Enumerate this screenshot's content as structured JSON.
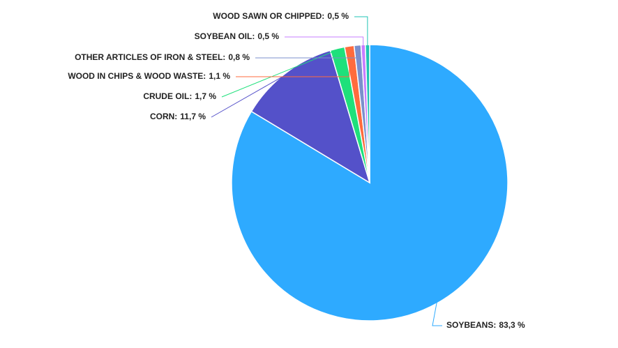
{
  "chart_data": {
    "type": "pie",
    "categories": [
      "SOYBEANS:",
      "CORN:",
      "CRUDE OIL:",
      "WOOD IN CHIPS & WOOD WASTE:",
      "OTHER ARTICLES OF IRON & STEEL:",
      "SOYBEAN OIL:",
      "WOOD SAWN OR CHIPPED:"
    ],
    "values": [
      83.3,
      11.7,
      1.7,
      1.1,
      0.8,
      0.5,
      0.5
    ],
    "value_labels": [
      "83,3 %",
      "11,7 %",
      "1,7 %",
      "1,1 %",
      "0,8 %",
      "0,5 %",
      "0,5 %"
    ],
    "colors": [
      "#2eaaff",
      "#5451c9",
      "#1ee07b",
      "#ff6b3d",
      "#7b8fcc",
      "#c77dff",
      "#1fc4b4"
    ]
  }
}
